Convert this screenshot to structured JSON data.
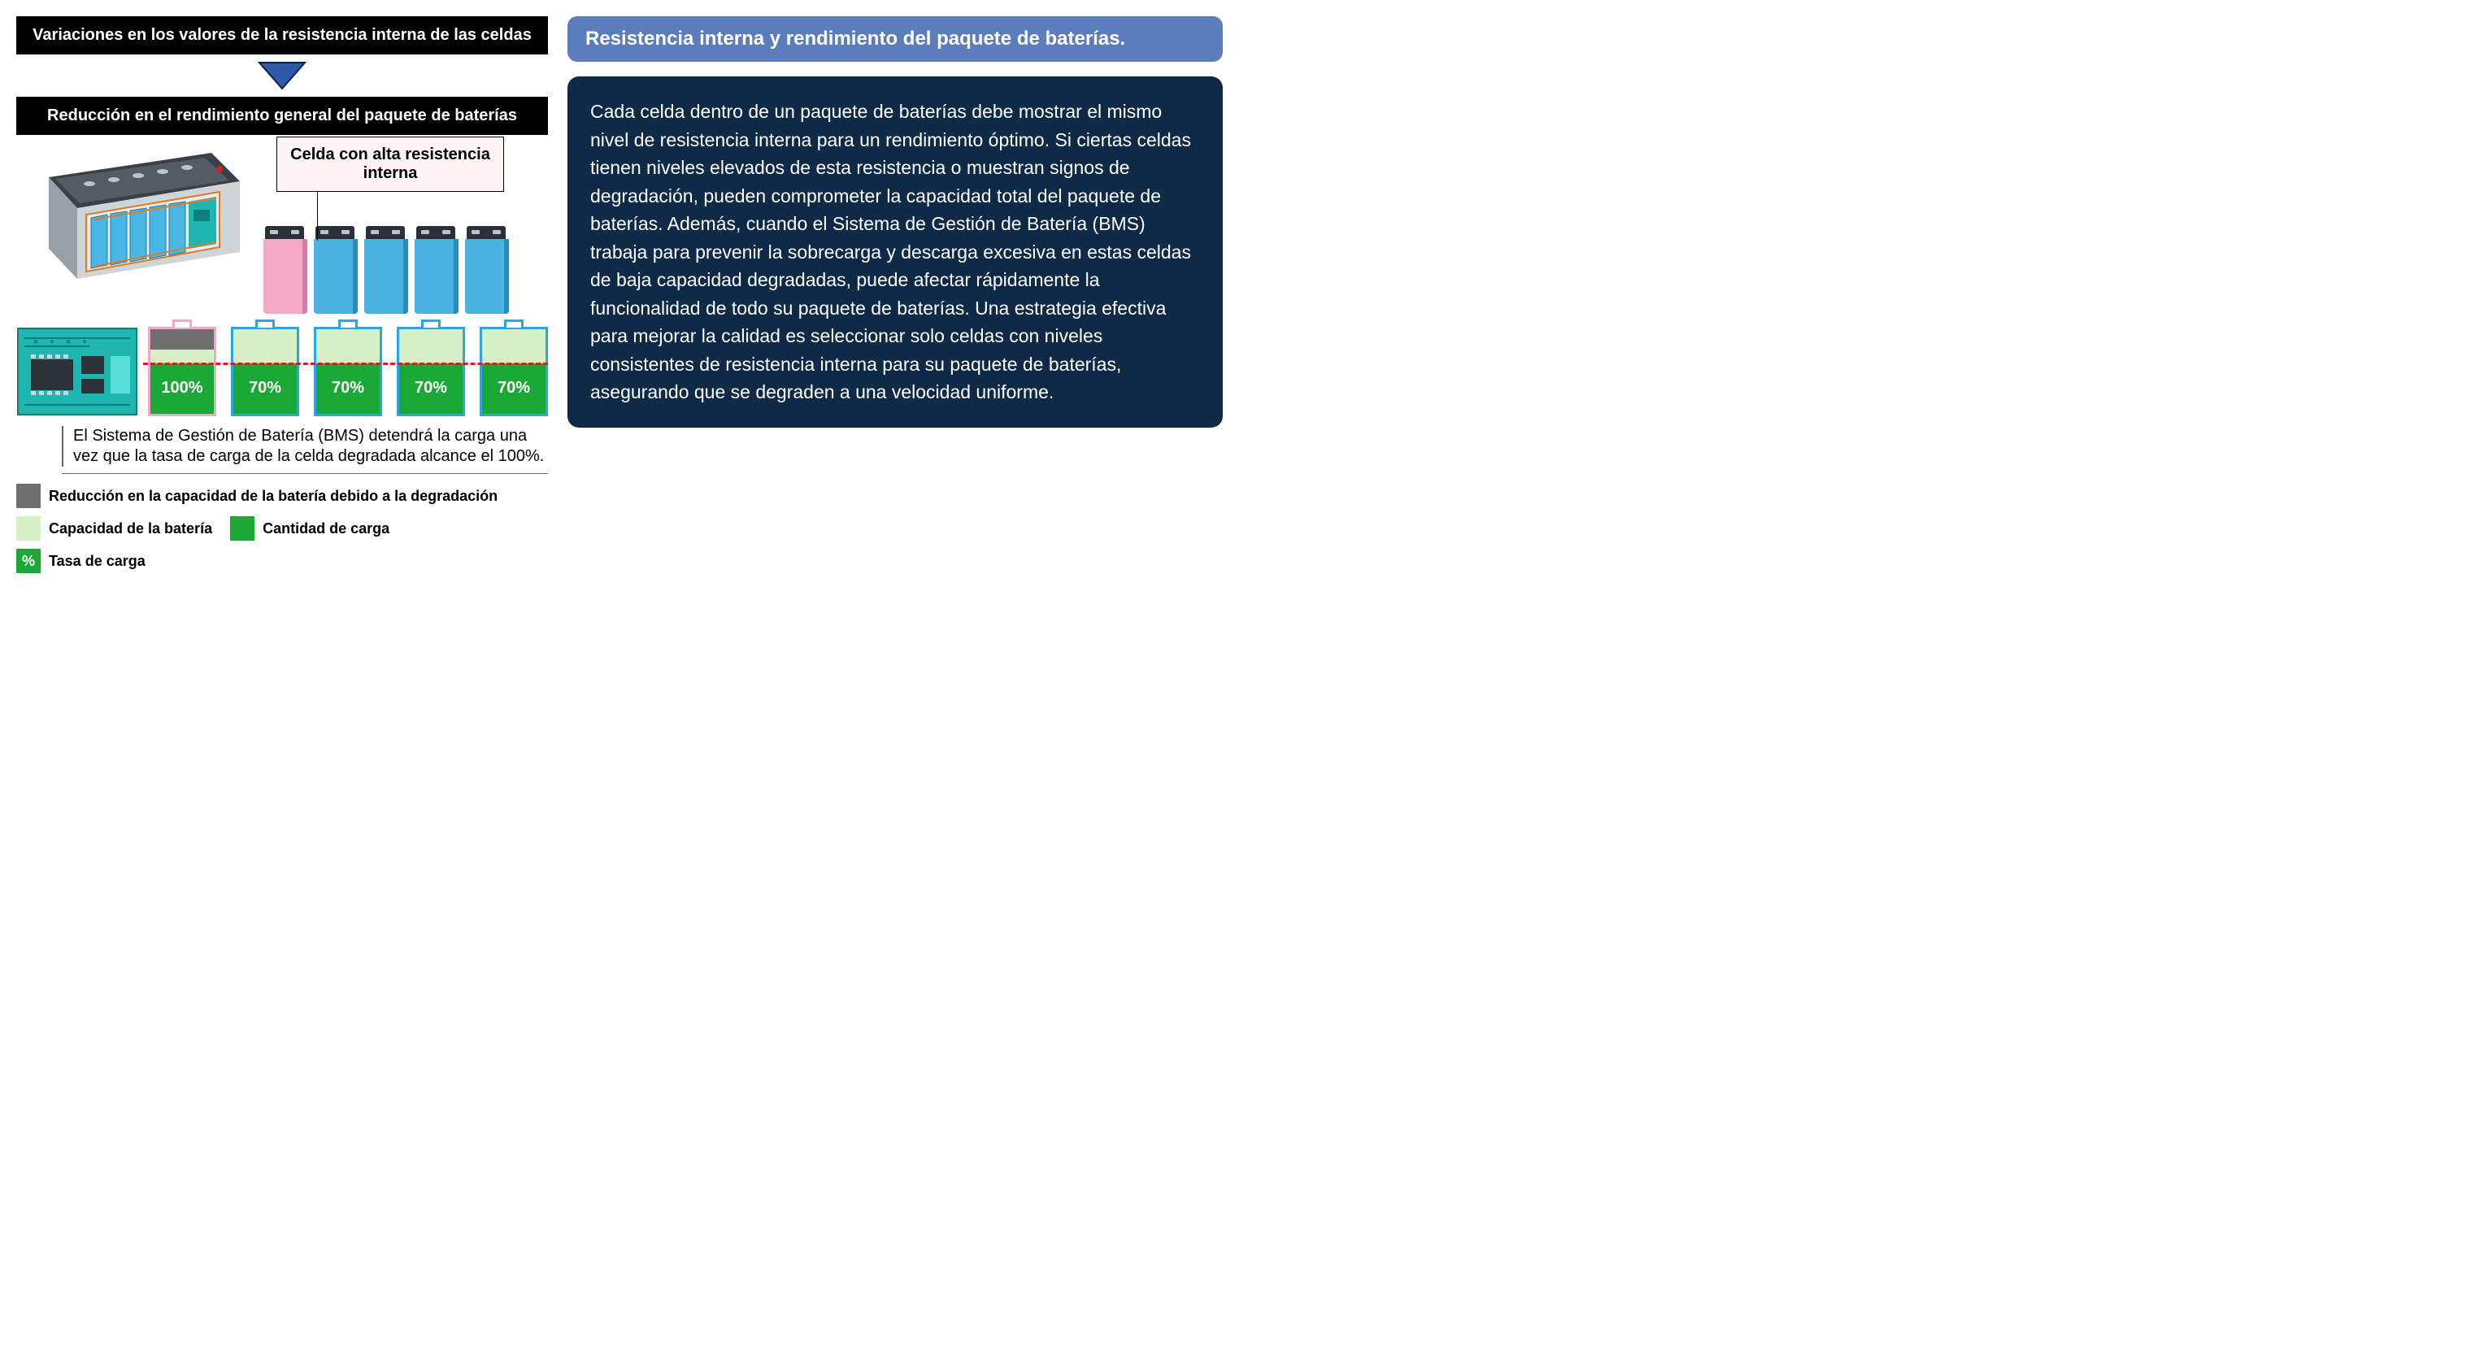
{
  "colors": {
    "black": "#000000",
    "white": "#ffffff",
    "arrow_fill": "#2f5aa8",
    "arrow_border": "#0a1f4a",
    "pack_case": "#3a3f48",
    "pack_body": "#cfd4d9",
    "pack_edge": "#9aa0a7",
    "pack_cell": "#49b7e4",
    "pack_cell_edge": "#1b7fb3",
    "pack_wire": "#e07b1f",
    "cell_blue": "#4bb3e1",
    "cell_blue_dark": "#2a8cba",
    "cell_pink": "#f4a9c6",
    "cell_pink_dark": "#d97aa6",
    "cell_top": "#2a2f38",
    "bms_bg": "#1fb6b0",
    "bms_dark": "#0e7f7a",
    "bms_chip": "#2c3238",
    "gauge_border_blue": "#2aa7e0",
    "gauge_border_pink": "#f4a8c7",
    "degradation": "#6f6f6f",
    "capacity": "#d6efc5",
    "charge": "#1aa837",
    "red_dash": "#d62020",
    "callout_bg": "#fdf4f6",
    "title_pill": "#5b7dbb",
    "body_panel": "#0e2a47",
    "sep": "#666666"
  },
  "left": {
    "bar1": "Variaciones en los valores de la resistencia interna de las celdas",
    "bar2": "Reducción en el rendimiento general del paquete de baterías",
    "callout": "Celda con alta resistencia interna",
    "cells": [
      {
        "border": "pink",
        "body": "cell_pink",
        "side": "cell_pink_dark"
      },
      {
        "border": "blue",
        "body": "cell_blue",
        "side": "cell_blue_dark"
      },
      {
        "border": "blue",
        "body": "cell_blue",
        "side": "cell_blue_dark"
      },
      {
        "border": "blue",
        "body": "cell_blue",
        "side": "cell_blue_dark"
      },
      {
        "border": "blue",
        "body": "cell_blue",
        "side": "cell_blue_dark"
      }
    ],
    "gauges": [
      {
        "border": "gauge_border_pink",
        "deg_pct": 24,
        "cap_pct": 16,
        "charge_pct": 60,
        "label": "100%"
      },
      {
        "border": "gauge_border_blue",
        "deg_pct": 0,
        "cap_pct": 40,
        "charge_pct": 60,
        "label": "70%"
      },
      {
        "border": "gauge_border_blue",
        "deg_pct": 0,
        "cap_pct": 40,
        "charge_pct": 60,
        "label": "70%"
      },
      {
        "border": "gauge_border_blue",
        "deg_pct": 0,
        "cap_pct": 40,
        "charge_pct": 60,
        "label": "70%"
      },
      {
        "border": "gauge_border_blue",
        "deg_pct": 0,
        "cap_pct": 40,
        "charge_pct": 60,
        "label": "70%"
      }
    ],
    "dash_top_pct": 40,
    "bms_text": "El Sistema de Gestión de Batería (BMS) detendrá la carga una vez que la tasa de carga de la celda degradada alcance el 100%.",
    "legend": {
      "degradation": "Reducción en la capacidad de la batería debido a la degradación",
      "capacity": "Capacidad de la batería",
      "charge": "Cantidad de carga",
      "rate_symbol": "%",
      "rate": "Tasa de carga"
    }
  },
  "right": {
    "title": "Resistencia interna y rendimiento del paquete de baterías.",
    "body": "Cada celda dentro de un paquete de baterías debe mostrar el mismo nivel de resistencia interna para un rendimiento óptimo. Si ciertas celdas tienen niveles elevados de esta resistencia o muestran signos de degradación, pueden comprometer la capacidad total del paquete de baterías. Además, cuando el Sistema de Gestión de Batería (BMS) trabaja para prevenir la sobrecarga y descarga excesiva en estas celdas de baja capacidad degradadas, puede afectar rápidamente la funcionalidad de todo su paquete de baterías. Una estrategia efectiva para mejorar la calidad es seleccionar solo celdas con niveles consistentes de resistencia interna para su paquete de baterías, asegurando que se degraden a una velocidad uniforme."
  }
}
